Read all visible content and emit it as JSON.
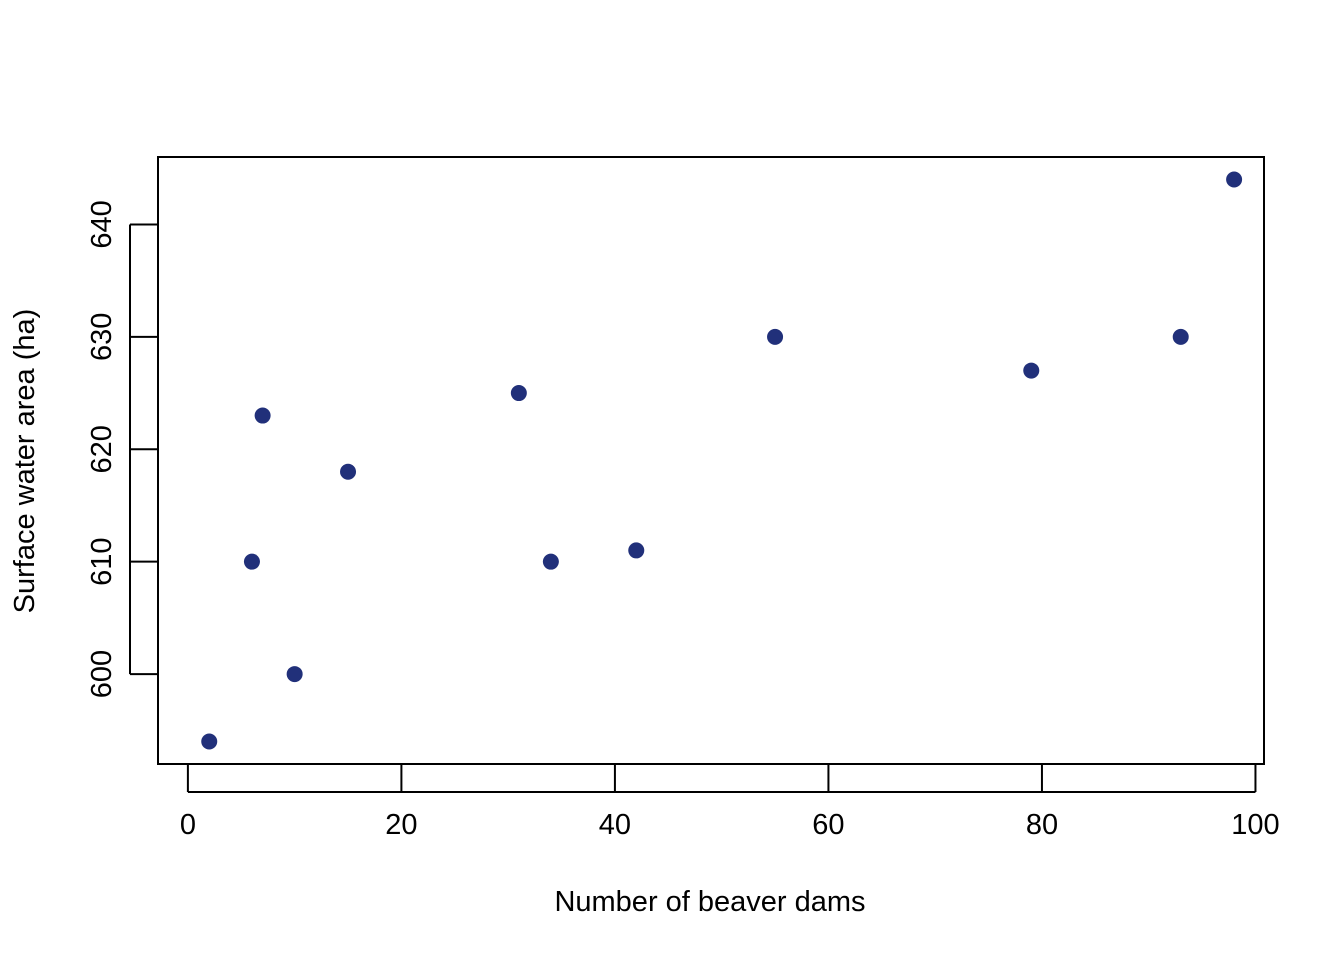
{
  "chart_data": {
    "type": "scatter",
    "title": "",
    "xlabel": "Number of beaver dams",
    "ylabel": "Surface water area (ha)",
    "xlim": [
      -2.8,
      100.8
    ],
    "ylim": [
      592.0,
      646.0
    ],
    "xticks": [
      0,
      20,
      40,
      60,
      80,
      100
    ],
    "yticks": [
      600,
      610,
      620,
      630,
      640
    ],
    "grid": false,
    "point_color": "#21307a",
    "points": [
      {
        "x": 2,
        "y": 594
      },
      {
        "x": 6,
        "y": 610
      },
      {
        "x": 7,
        "y": 623
      },
      {
        "x": 10,
        "y": 600
      },
      {
        "x": 15,
        "y": 618
      },
      {
        "x": 31,
        "y": 625
      },
      {
        "x": 34,
        "y": 610
      },
      {
        "x": 42,
        "y": 611
      },
      {
        "x": 55,
        "y": 630
      },
      {
        "x": 79,
        "y": 627
      },
      {
        "x": 93,
        "y": 630
      },
      {
        "x": 98,
        "y": 644
      }
    ]
  }
}
